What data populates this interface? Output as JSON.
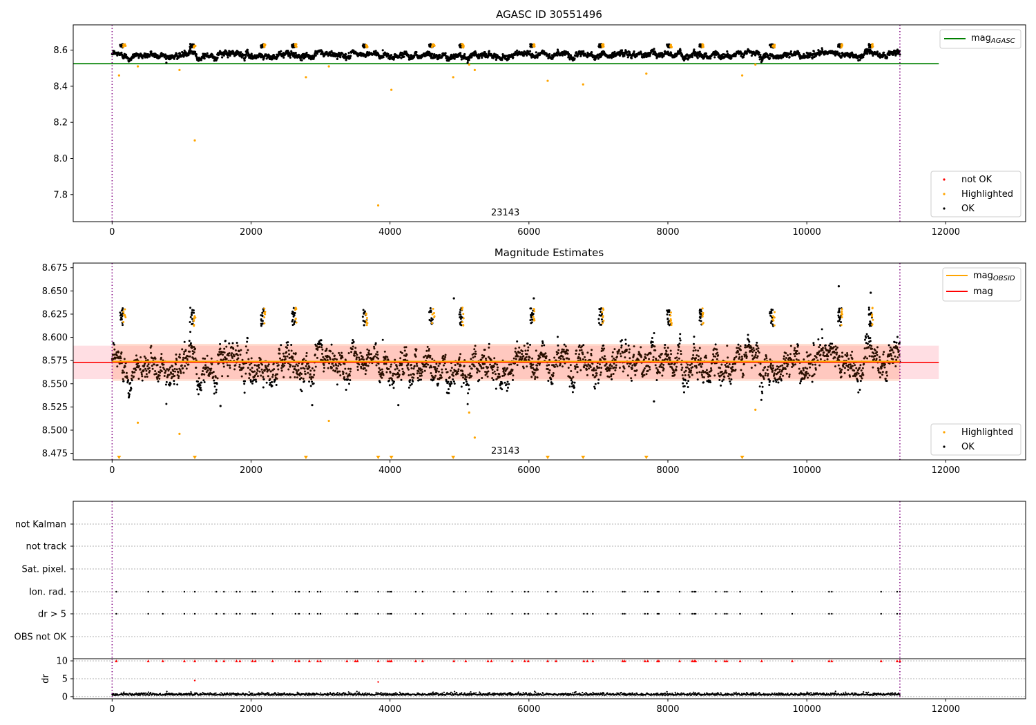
{
  "chart_data": [
    {
      "type": "scatter",
      "title": "AGASC ID 30551496",
      "xlim": [
        -560,
        13150
      ],
      "ylim": [
        7.65,
        8.74
      ],
      "xticks": [
        "0",
        "2000",
        "4000",
        "6000",
        "8000",
        "10000",
        "12000"
      ],
      "yticks": [
        "7.8",
        "8.0",
        "8.2",
        "8.4",
        "8.6"
      ],
      "xtick_values": [
        0,
        2000,
        4000,
        6000,
        8000,
        10000,
        12000
      ],
      "ytick_values": [
        7.8,
        8.0,
        8.2,
        8.4,
        8.6
      ],
      "vlines": [
        0,
        11340
      ],
      "annotation": "23143",
      "annotation_x": 5660,
      "hline": {
        "name": "mag",
        "sub": "AGASC",
        "value": 8.525,
        "x_range": [
          -560,
          11900
        ],
        "color": "#008000"
      },
      "series": [
        {
          "name": "not OK",
          "color": "#ff0000",
          "points": []
        },
        {
          "name": "Highlighted",
          "color": "#ffa500",
          "points": [
            [
              100,
              8.46
            ],
            [
              370,
              8.51
            ],
            [
              970,
              8.49
            ],
            [
              1190,
              8.1
            ],
            [
              2790,
              8.45
            ],
            [
              3120,
              8.51
            ],
            [
              3830,
              7.74
            ],
            [
              4020,
              8.38
            ],
            [
              4910,
              8.45
            ],
            [
              5140,
              8.52
            ],
            [
              5220,
              8.49
            ],
            [
              6270,
              8.43
            ],
            [
              6780,
              8.41
            ],
            [
              7690,
              8.47
            ],
            [
              9070,
              8.46
            ],
            [
              9260,
              8.52
            ]
          ]
        },
        {
          "name": "OK",
          "color": "#000000",
          "points": []
        }
      ],
      "legend": "lower-right"
    },
    {
      "type": "scatter",
      "title": "Magnitude Estimates",
      "xlim": [
        -560,
        13150
      ],
      "ylim": [
        8.468,
        8.68
      ],
      "xticks": [
        "0",
        "2000",
        "4000",
        "6000",
        "8000",
        "10000",
        "12000"
      ],
      "yticks": [
        "8.475",
        "8.500",
        "8.525",
        "8.550",
        "8.575",
        "8.600",
        "8.625",
        "8.650",
        "8.675"
      ],
      "xtick_values": [
        0,
        2000,
        4000,
        6000,
        8000,
        10000,
        12000
      ],
      "ytick_values": [
        8.475,
        8.5,
        8.525,
        8.55,
        8.575,
        8.6,
        8.625,
        8.65,
        8.675
      ],
      "vlines": [
        0,
        11340
      ],
      "annotation": "23143",
      "annotation_x": 5660,
      "hline": {
        "name": "mag",
        "value": 8.573,
        "x_range": [
          -560,
          11900
        ],
        "color": "#ff0000"
      },
      "band": {
        "low": 8.555,
        "high": 8.591,
        "x_range": [
          -560,
          11900
        ]
      },
      "obsid_line": {
        "name": "mag",
        "sub": "OBSID",
        "value": 8.574,
        "x_range": [
          0,
          11340
        ],
        "color": "#ffa500"
      },
      "series": [
        {
          "name": "Highlighted",
          "color": "#ffa500",
          "points": [
            [
              370,
              8.508
            ],
            [
              970,
              8.496
            ],
            [
              3120,
              8.51
            ],
            [
              5140,
              8.519
            ],
            [
              5220,
              8.492
            ],
            [
              9260,
              8.522
            ]
          ]
        },
        {
          "name": "OK",
          "color": "#000000",
          "points": [
            [
              1560,
              8.526
            ],
            [
              2880,
              8.527
            ],
            [
              4120,
              8.527
            ],
            [
              7800,
              8.531
            ],
            [
              4920,
              8.642
            ],
            [
              6070,
              8.642
            ],
            [
              10460,
              8.655
            ],
            [
              10920,
              8.648
            ]
          ]
        }
      ],
      "lower_markers": [
        100,
        1190,
        2790,
        3830,
        4020,
        4910,
        6270,
        6780,
        7690,
        9070
      ],
      "legend_upper": "upper-right",
      "legend_lower": "lower-right"
    },
    {
      "type": "scatter",
      "title": "",
      "xlim": [
        -560,
        13150
      ],
      "categories": [
        "OBS not OK",
        "dr > 5",
        "Ion. rad.",
        "Sat. pixel.",
        "not track",
        "not Kalman"
      ],
      "vlines": [
        0,
        11340
      ],
      "flag_events": [
        60,
        520,
        730,
        1040,
        1190,
        1500,
        1610,
        1790,
        1840,
        2020,
        2060,
        2310,
        2640,
        2690,
        2840,
        2960,
        3000,
        3380,
        3500,
        3530,
        3830,
        3970,
        4000,
        4020,
        4370,
        4470,
        4920,
        5090,
        5410,
        5460,
        5760,
        5940,
        5990,
        6270,
        6390,
        6790,
        6840,
        6920,
        7350,
        7380,
        7670,
        7710,
        7850,
        7870,
        8170,
        8350,
        8380,
        8400,
        8690,
        8820,
        8850,
        9040,
        9350,
        9790,
        10320,
        10360,
        11070,
        11300,
        11340
      ]
    },
    {
      "type": "scatter",
      "title": "",
      "ylabel": "dr",
      "xlim": [
        -560,
        13150
      ],
      "ylim": [
        -0.6,
        10.6
      ],
      "xticks": [
        "0",
        "2000",
        "4000",
        "6000",
        "8000",
        "10000",
        "12000"
      ],
      "yticks": [
        "0",
        "5",
        "10"
      ],
      "xtick_values": [
        0,
        2000,
        4000,
        6000,
        8000,
        10000,
        12000
      ],
      "ytick_values": [
        0,
        5,
        10
      ],
      "vlines": [
        0,
        11340
      ],
      "outliers": [
        [
          1190,
          4.5
        ],
        [
          3830,
          4.1
        ]
      ]
    }
  ]
}
